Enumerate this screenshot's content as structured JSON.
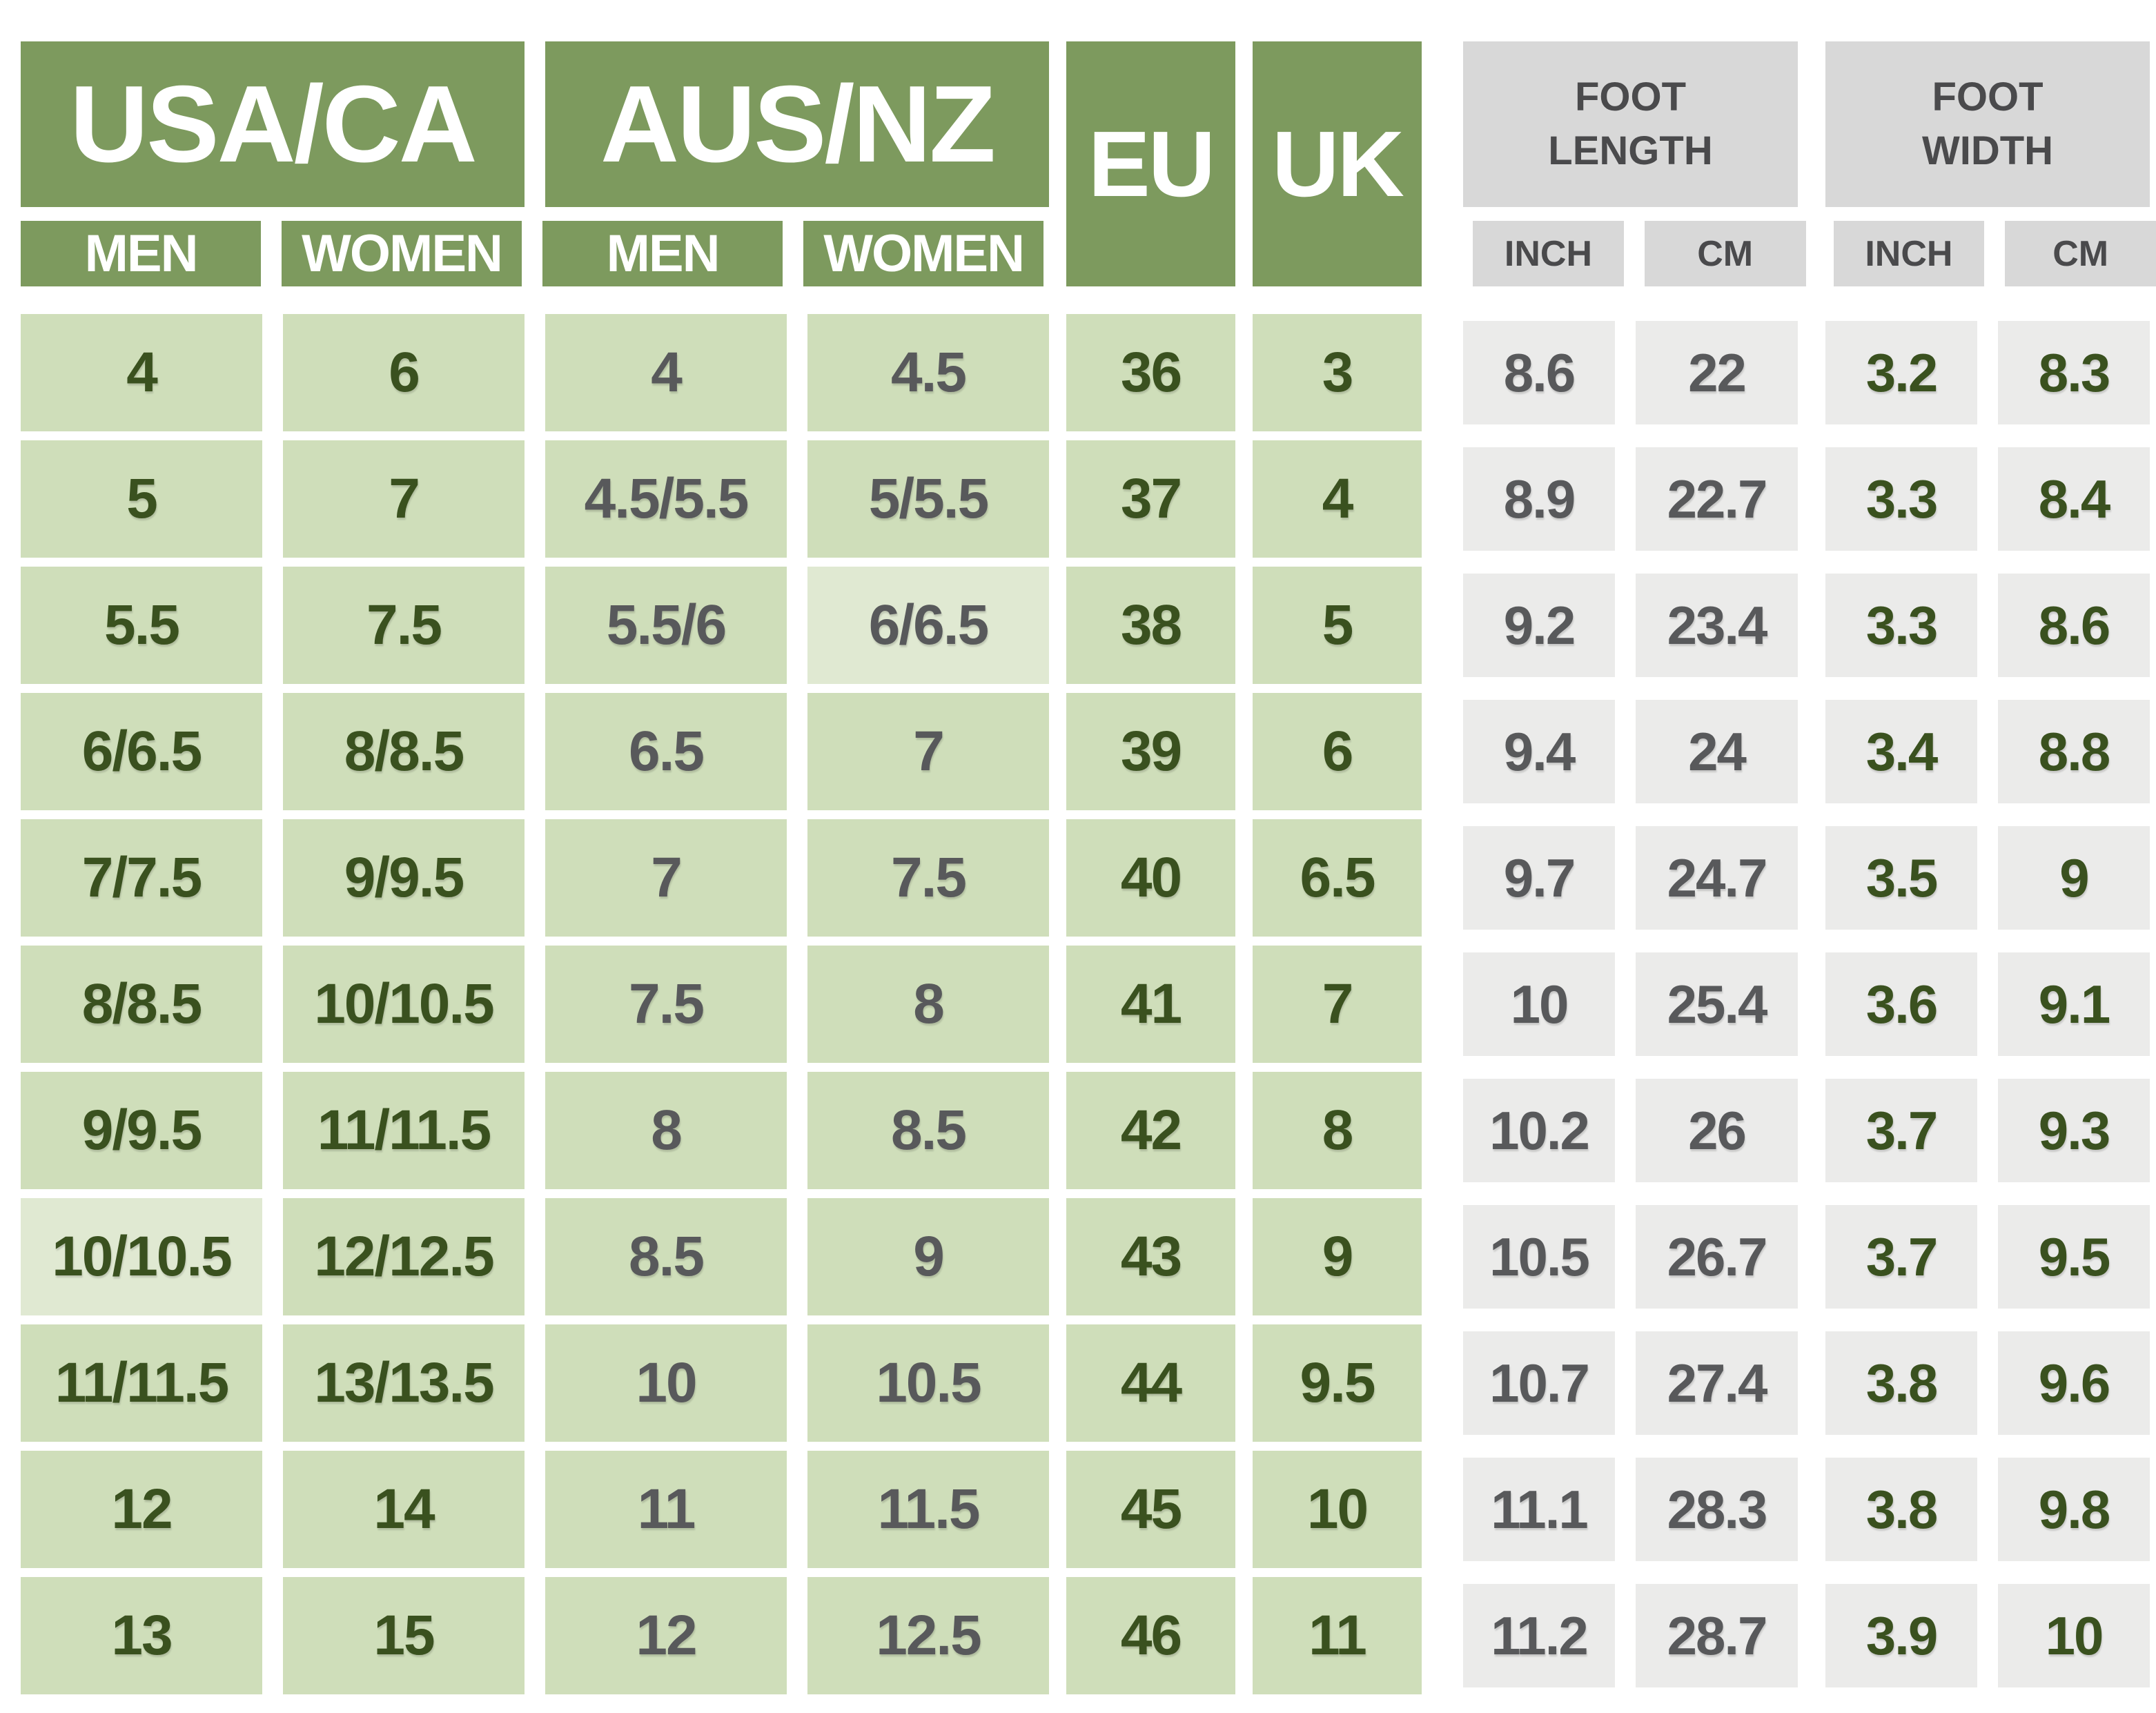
{
  "colors": {
    "header_green": "#7d9a5e",
    "cell_green": "#cfdeba",
    "cell_green_light": "#e0e9d2",
    "header_gray": "#d8d8d8",
    "cell_gray": "#ebebea",
    "text_white": "#ffffff",
    "text_dark_green": "#3a511f",
    "text_gray": "#58595b",
    "text_header_gray": "#4a4a4c"
  },
  "chart_data": {
    "type": "table",
    "column_groups": [
      {
        "label": "USA/CA",
        "subs": [
          "MEN",
          "WOMEN"
        ]
      },
      {
        "label": "AUS/NZ",
        "subs": [
          "MEN",
          "WOMEN"
        ]
      },
      {
        "label": "EU"
      },
      {
        "label": "UK"
      },
      {
        "label": "FOOT LENGTH",
        "subs": [
          "INCH",
          "CM"
        ]
      },
      {
        "label": "FOOT WIDTH",
        "subs": [
          "INCH",
          "CM"
        ]
      }
    ],
    "columns": [
      "usa_ca_men",
      "usa_ca_women",
      "aus_nz_men",
      "aus_nz_women",
      "eu",
      "uk",
      "foot_length_inch",
      "foot_length_cm",
      "foot_width_inch",
      "foot_width_cm"
    ],
    "rows": [
      [
        "4",
        "6",
        "4",
        "4.5",
        "36",
        "3",
        "8.6",
        "22",
        "3.2",
        "8.3"
      ],
      [
        "5",
        "7",
        "4.5/5.5",
        "5/5.5",
        "37",
        "4",
        "8.9",
        "22.7",
        "3.3",
        "8.4"
      ],
      [
        "5.5",
        "7.5",
        "5.5/6",
        "6/6.5",
        "38",
        "5",
        "9.2",
        "23.4",
        "3.3",
        "8.6"
      ],
      [
        "6/6.5",
        "8/8.5",
        "6.5",
        "7",
        "39",
        "6",
        "9.4",
        "24",
        "3.4",
        "8.8"
      ],
      [
        "7/7.5",
        "9/9.5",
        "7",
        "7.5",
        "40",
        "6.5",
        "9.7",
        "24.7",
        "3.5",
        "9"
      ],
      [
        "8/8.5",
        "10/10.5",
        "7.5",
        "8",
        "41",
        "7",
        "10",
        "25.4",
        "3.6",
        "9.1"
      ],
      [
        "9/9.5",
        "11/11.5",
        "8",
        "8.5",
        "42",
        "8",
        "10.2",
        "26",
        "3.7",
        "9.3"
      ],
      [
        "10/10.5",
        "12/12.5",
        "8.5",
        "9",
        "43",
        "9",
        "10.5",
        "26.7",
        "3.7",
        "9.5"
      ],
      [
        "11/11.5",
        "13/13.5",
        "10",
        "10.5",
        "44",
        "9.5",
        "10.7",
        "27.4",
        "3.8",
        "9.6"
      ],
      [
        "12",
        "14",
        "11",
        "11.5",
        "45",
        "10",
        "11.1",
        "28.3",
        "3.8",
        "9.8"
      ],
      [
        "13",
        "15",
        "12",
        "12.5",
        "46",
        "11",
        "11.2",
        "28.7",
        "3.9",
        "10"
      ]
    ],
    "lighter_cells": [
      {
        "row": 2,
        "col": 3
      },
      {
        "row": 7,
        "col": 0
      }
    ]
  }
}
